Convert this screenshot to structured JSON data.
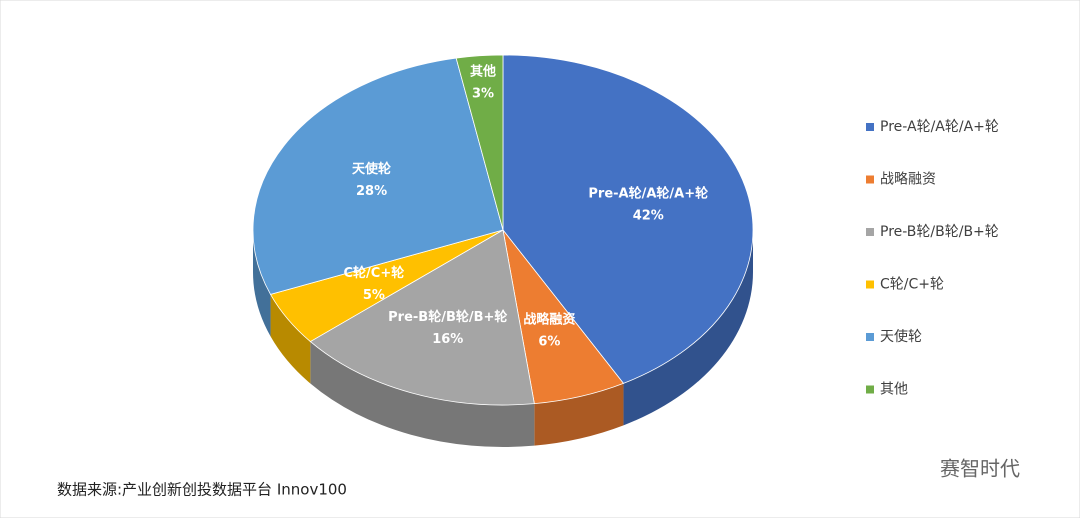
{
  "chart_data": {
    "type": "pie",
    "categories": [
      "Pre-A轮/A轮/A+轮",
      "战略融资",
      "Pre-B轮/B轮/B+轮",
      "C轮/C+轮",
      "天使轮",
      "其他"
    ],
    "values": [
      42,
      6,
      16,
      5,
      28,
      3
    ],
    "value_labels": [
      "42%",
      "6%",
      "16%",
      "5%",
      "28%",
      "3%"
    ],
    "colors": [
      "#4472c4",
      "#ed7d31",
      "#a5a5a5",
      "#ffc000",
      "#5b9bd5",
      "#70ad47"
    ],
    "legend": "right",
    "source": "数据来源:产业创新创投数据平台 Innov100",
    "watermark": "赛智时代"
  }
}
